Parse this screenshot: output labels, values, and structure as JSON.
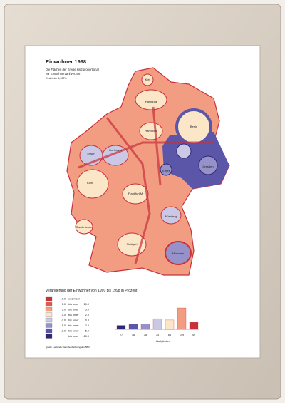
{
  "header": {
    "title": "Einwohner 1998",
    "subtitle": [
      "Die Flächen der Kreise sind proportional",
      "zur Einwohnerzahl verzerrt"
    ],
    "note": "Restfehler 1,033%"
  },
  "map": {
    "cities": [
      "Kiel",
      "Hamburg",
      "Berlin",
      "Hannover",
      "Dortmund",
      "Essen",
      "Köln",
      "Erfurt",
      "Dresden",
      "Frankfurt/M",
      "Saarbrücken",
      "Nürnberg",
      "Stuttgart",
      "München"
    ]
  },
  "legend": {
    "title": "Veränderung der Einwohner von 1990 bis 1998 in Prozent",
    "items": [
      {
        "from": "10.0",
        "connector": "und mehr",
        "color": "#c8303a"
      },
      {
        "from": "5.0",
        "connector": "bis unter",
        "to": "10.0",
        "color": "#e0594d"
      },
      {
        "from": "2.0",
        "connector": "bis unter",
        "to": "5.0",
        "color": "#f29c82"
      },
      {
        "from": "0.0",
        "connector": "bis unter",
        "to": "2.0",
        "color": "#fbe6c8"
      },
      {
        "from": "-2.0",
        "connector": "bis unter",
        "to": "0.0",
        "color": "#cbc8e5"
      },
      {
        "from": "-5.0",
        "connector": "bis unter",
        "to": "-2.0",
        "color": "#9692c9"
      },
      {
        "from": "-10.0",
        "connector": "bis unter",
        "to": "-5.0",
        "color": "#5b56a7"
      },
      {
        "connector": "bis unter",
        "to": "-10.0",
        "color": "#2c2872"
      }
    ]
  },
  "histogram": {
    "values": [
      27,
      38,
      38,
      74,
      65,
      149,
      49
    ],
    "colors": [
      "#2c2872",
      "#5b56a7",
      "#9692c9",
      "#cbc8e5",
      "#fbe6c8",
      "#f29c82",
      "#c8303a"
    ],
    "label": "Häufigkeiten"
  },
  "source": "Quelle: Laufende Raumbeobachtung des BBR"
}
